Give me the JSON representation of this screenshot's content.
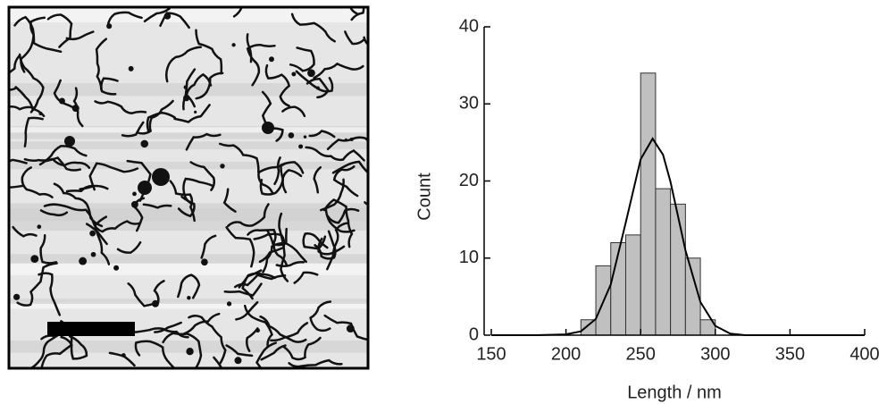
{
  "chart_data": {
    "type": "histogram",
    "xlabel": "Length / nm",
    "ylabel": "Count",
    "bins": [
      210,
      220,
      230,
      240,
      250,
      260,
      270,
      280,
      290,
      300
    ],
    "counts": [
      2,
      9,
      12,
      13,
      34,
      19,
      17,
      10,
      2
    ],
    "color": "#c0c0c0",
    "fit": {
      "x": [
        150,
        180,
        200,
        210,
        220,
        230,
        240,
        250,
        258,
        265,
        270,
        280,
        290,
        300,
        310,
        320,
        340,
        370,
        400
      ],
      "y": [
        0,
        0,
        0.1,
        0.5,
        2.1,
        6.6,
        14.6,
        22.8,
        25.5,
        23.4,
        19.9,
        11,
        4.3,
        1.2,
        0.2,
        0,
        0,
        0,
        0
      ],
      "color": "#000000"
    },
    "xlim": [
      150,
      400
    ],
    "xticks": [
      150,
      200,
      250,
      300,
      350,
      400
    ],
    "ylim": [
      0,
      40
    ],
    "yticks": [
      0,
      10,
      20,
      30,
      40
    ]
  }
}
